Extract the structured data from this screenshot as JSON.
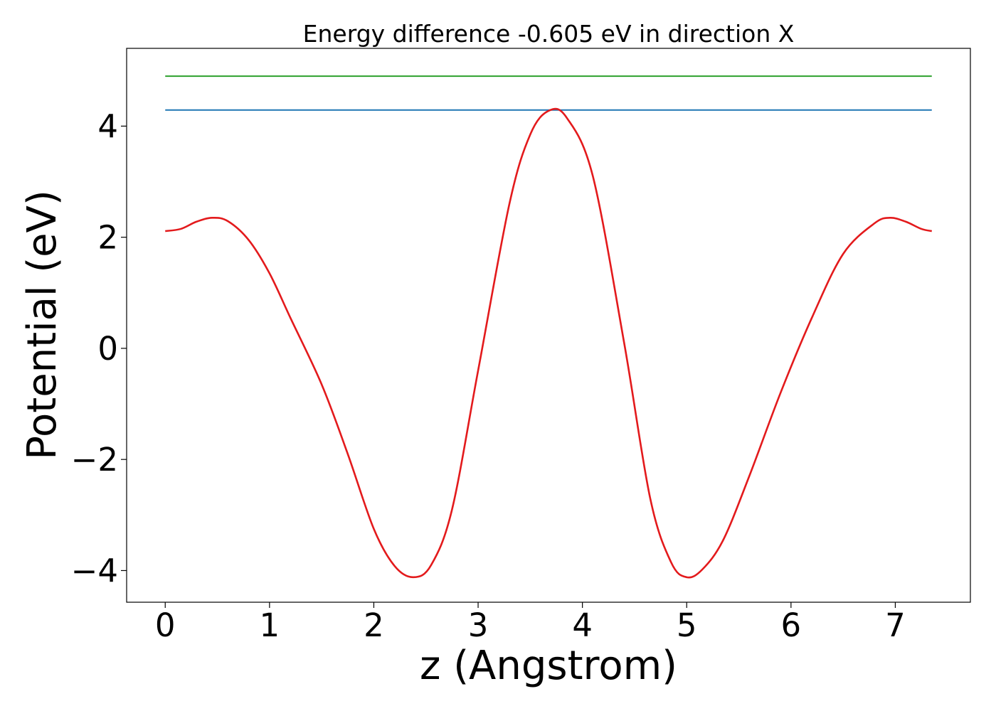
{
  "chart_data": {
    "type": "line",
    "title": "Energy difference -0.605 eV in direction X",
    "xlabel": "z (Angstrom)",
    "ylabel": "Potential (eV)",
    "xlim": [
      -0.37,
      7.72
    ],
    "ylim": [
      -4.57,
      5.4
    ],
    "xticks": [
      0,
      1,
      2,
      3,
      4,
      5,
      6,
      7
    ],
    "yticks": [
      -4,
      -2,
      0,
      2,
      4
    ],
    "xtick_labels": [
      "0",
      "1",
      "2",
      "3",
      "4",
      "5",
      "6",
      "7"
    ],
    "ytick_labels": [
      "−4",
      "−2",
      "0",
      "2",
      "4"
    ],
    "grid": false,
    "legend": false,
    "series": [
      {
        "color": "#2ca02c",
        "x": [
          0,
          7.35
        ],
        "y": [
          4.9,
          4.9
        ]
      },
      {
        "color": "#1f77b4",
        "x": [
          0,
          7.35
        ],
        "y": [
          4.29,
          4.29
        ]
      },
      {
        "color": "#e31a1c",
        "x": [
          0,
          0.15,
          0.3,
          0.45,
          0.6,
          0.8,
          1.0,
          1.2,
          1.5,
          1.75,
          2.0,
          2.2,
          2.38,
          2.55,
          2.75,
          3.0,
          3.3,
          3.5,
          3.68,
          3.85,
          4.1,
          4.4,
          4.65,
          4.85,
          5.0,
          5.15,
          5.35,
          5.6,
          5.9,
          6.2,
          6.5,
          6.8,
          6.95,
          7.1,
          7.25,
          7.35
        ],
        "y": [
          2.11,
          2.15,
          2.28,
          2.35,
          2.29,
          1.95,
          1.35,
          0.55,
          -0.65,
          -1.9,
          -3.25,
          -3.92,
          -4.12,
          -3.9,
          -2.9,
          -0.4,
          2.6,
          3.85,
          4.28,
          4.15,
          3.1,
          0.1,
          -2.7,
          -3.85,
          -4.12,
          -3.98,
          -3.45,
          -2.3,
          -0.8,
          0.55,
          1.7,
          2.25,
          2.35,
          2.28,
          2.15,
          2.11
        ]
      }
    ]
  }
}
